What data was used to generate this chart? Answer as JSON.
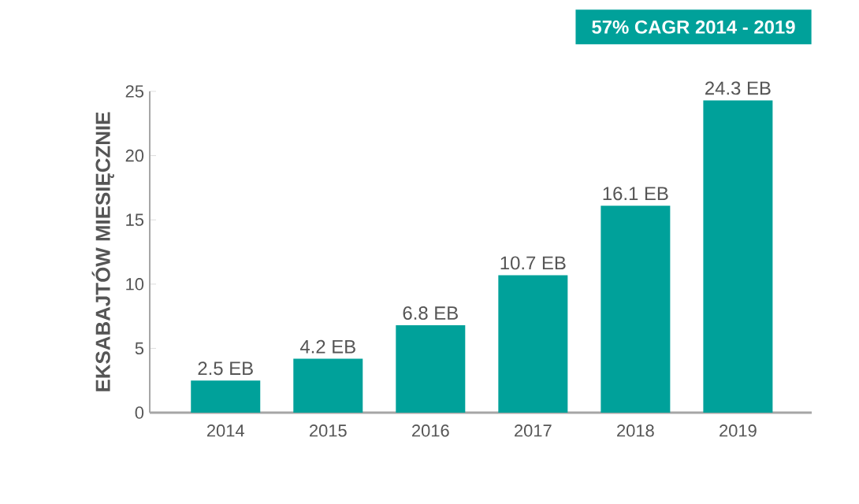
{
  "chart_data": {
    "type": "bar",
    "ylabel": "EKSABAJTÓW MIESIĘCZNIE",
    "annotations": [
      "57% CAGR 2014 - 2019"
    ],
    "categories": [
      "2014",
      "2015",
      "2016",
      "2017",
      "2018",
      "2019"
    ],
    "values": [
      2.5,
      4.2,
      6.8,
      10.7,
      16.1,
      24.3
    ],
    "value_labels": [
      "2.5 EB",
      "4.2 EB",
      "6.8 EB",
      "10.7 EB",
      "16.1 EB",
      "24.3 EB"
    ],
    "color": "#00a19a",
    "ylim": [
      0,
      25
    ],
    "yticks": [
      0,
      5,
      10,
      15,
      20,
      25
    ]
  }
}
